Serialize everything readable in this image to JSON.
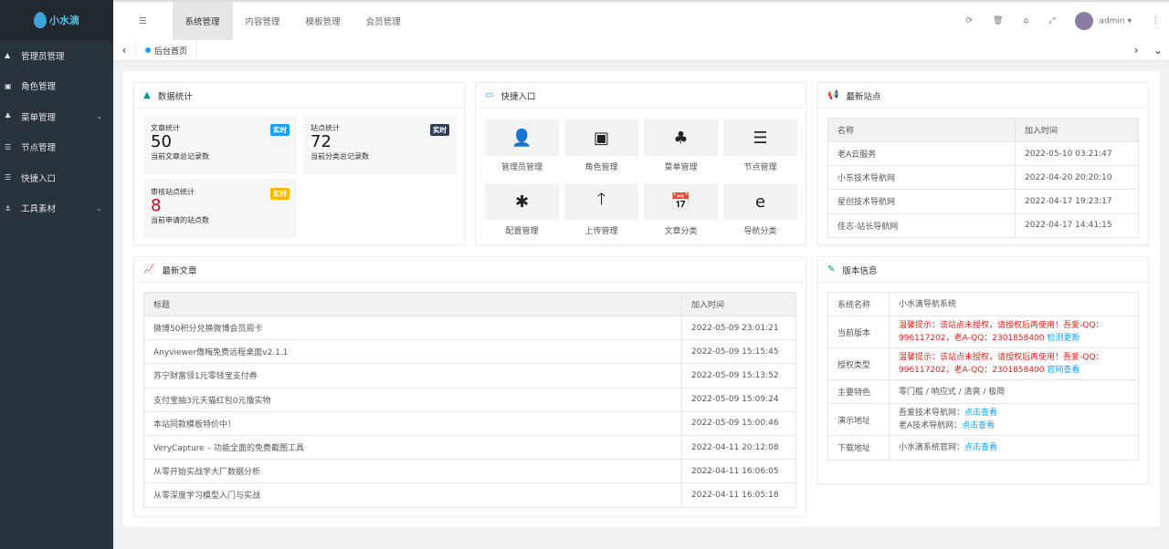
{
  "app": {
    "logo_text": "小水滴"
  },
  "sidebar": {
    "items": [
      {
        "label": "管理员管理",
        "icon": "user-icon",
        "glyph": "▲",
        "chev": false
      },
      {
        "label": "角色管理",
        "icon": "id-card-icon",
        "glyph": "▣",
        "chev": false
      },
      {
        "label": "菜单管理",
        "icon": "tree-icon",
        "glyph": "♣",
        "chev": true
      },
      {
        "label": "节点管理",
        "icon": "list-icon",
        "glyph": "☰",
        "chev": false
      },
      {
        "label": "快捷入口",
        "icon": "list-icon",
        "glyph": "☰",
        "chev": false
      },
      {
        "label": "工具素材",
        "icon": "anchor-icon",
        "glyph": "⚓",
        "chev": true
      }
    ]
  },
  "header": {
    "tabs": [
      "系统管理",
      "内容管理",
      "模板管理",
      "会员管理"
    ],
    "user": "admin"
  },
  "breadcrumb": {
    "current": "后台首页"
  },
  "stats": {
    "title": "数据统计",
    "cards": [
      {
        "label": "文章统计",
        "value": "50",
        "desc": "当前文章总记录数",
        "badge": "实时",
        "color": "#1e9fff"
      },
      {
        "label": "站点统计",
        "value": "72",
        "desc": "当前分类总记录数",
        "badge": "实时",
        "color": "#2f4056"
      },
      {
        "label": "审核站点统计",
        "value": "8",
        "desc": "当前申请的站点数",
        "badge": "实时",
        "color": "#ffb800"
      }
    ]
  },
  "quick": {
    "title": "快捷入口",
    "items": [
      {
        "label": "管理员管理",
        "glyph": "👤"
      },
      {
        "label": "角色管理",
        "glyph": "▣"
      },
      {
        "label": "菜单管理",
        "glyph": "♣"
      },
      {
        "label": "节点管理",
        "glyph": "☰"
      },
      {
        "label": "配置管理",
        "glyph": "✱"
      },
      {
        "label": "上传管理",
        "glyph": "🡑"
      },
      {
        "label": "文章分类",
        "glyph": "📅"
      },
      {
        "label": "导航分类",
        "glyph": "e"
      }
    ]
  },
  "sites": {
    "title": "最新站点",
    "headers": [
      "名称",
      "加入时间"
    ],
    "rows": [
      [
        "老A云服务",
        "2022-05-10 03:21:47"
      ],
      [
        "小东技术导航网",
        "2022-04-20 20:20:10"
      ],
      [
        "星创技术导航网",
        "2022-04-17 19:23:17"
      ],
      [
        "佳志-站长导航网",
        "2022-04-17 14:41:15"
      ]
    ]
  },
  "articles": {
    "title": "最新文章",
    "headers": [
      "标题",
      "加入时间"
    ],
    "rows": [
      [
        "微博50积分兑换微博会员周卡",
        "2022-05-09 23:01:21"
      ],
      [
        "Anyviewer傲梅免费远程桌面v2.1.1",
        "2022-05-09 15:15:45"
      ],
      [
        "苏宁财富领1元零钱宝支付券",
        "2022-05-09 15:13:52"
      ],
      [
        "支付宝抽3元天猫红包0元撸实物",
        "2022-05-09 15:09:24"
      ],
      [
        "本站同款模板特价中！",
        "2022-05-09 15:00:46"
      ],
      [
        "VeryCapture – 功能全面的免费截图工具",
        "2022-04-11 20:12:08"
      ],
      [
        "从零开始实战学大厂数据分析",
        "2022-04-11 16:06:05"
      ],
      [
        "从零深度学习模型入门与实战",
        "2022-04-11 16:05:18"
      ]
    ]
  },
  "version": {
    "title": "版本信息",
    "rows": [
      {
        "k": "系统名称",
        "v": "小水滴导航系统"
      },
      {
        "k": "当前版本",
        "warn": "温馨提示：该站点未授权，请授权后再使用！吾爱-QQ：996117202，老A-QQ：2301858400",
        "link": "检测更新"
      },
      {
        "k": "授权类型",
        "warn": "温馨提示：该站点未授权，请授权后再使用！吾爱-QQ：996117202，老A-QQ：2301858400",
        "link": "官网查看"
      },
      {
        "k": "主要特色",
        "v": "零门槛 / 响应式 / 清爽 / 极简"
      },
      {
        "k": "演示地址",
        "lines": [
          {
            "t": "吾爱技术导航网：",
            "link": "点击查看"
          },
          {
            "t": "老A技术导航网：",
            "link": "点击查看"
          }
        ]
      },
      {
        "k": "下载地址",
        "lines": [
          {
            "t": "小水滴系统官网：",
            "link": "点击查看"
          }
        ]
      }
    ]
  }
}
